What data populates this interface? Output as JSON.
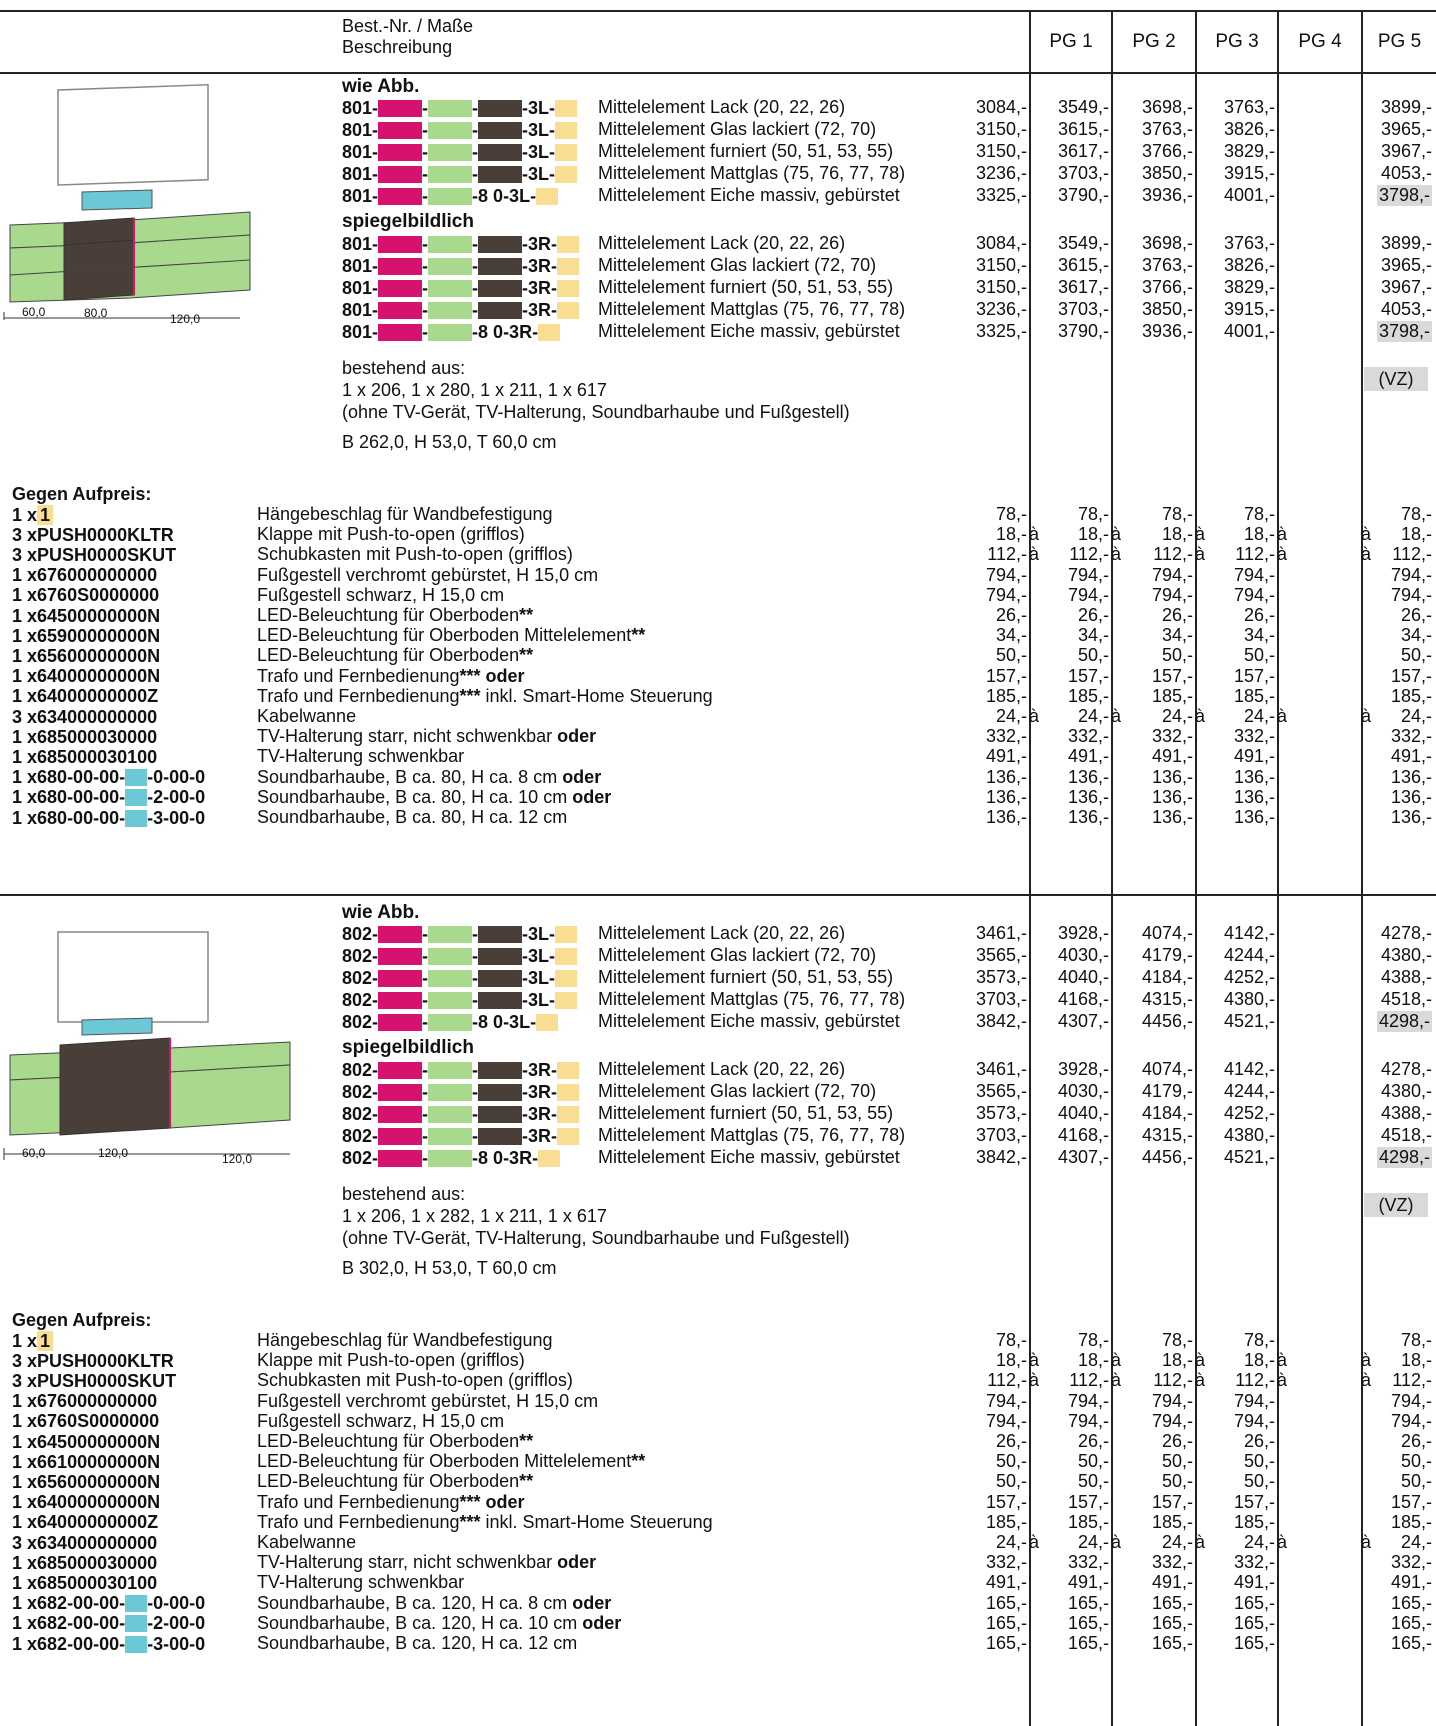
{
  "header": {
    "desc_line1": "Best.-Nr. / Maße",
    "desc_line2": "Beschreibung",
    "pg": [
      "PG 1",
      "PG 2",
      "PG 3",
      "PG 4",
      "PG 5"
    ]
  },
  "blocks": [
    {
      "wie_abb": "wie Abb.",
      "spiegel": "spiegelbildlich",
      "prefix": "801-",
      "rowsL": [
        {
          "mid": "",
          "suffix": "-3L-",
          "desc": "Mittelelement Lack (20, 22, 26)",
          "prices": [
            "3084,-",
            "3549,-",
            "3698,-",
            "3763,-",
            "3899,-"
          ]
        },
        {
          "mid": "",
          "suffix": "-3L-",
          "desc": "Mittelelement Glas lackiert (72, 70)",
          "prices": [
            "3150,-",
            "3615,-",
            "3763,-",
            "3826,-",
            "3965,-"
          ]
        },
        {
          "mid": "",
          "suffix": "-3L-",
          "desc": "Mittelelement furniert (50, 51, 53, 55)",
          "prices": [
            "3150,-",
            "3617,-",
            "3766,-",
            "3829,-",
            "3967,-"
          ]
        },
        {
          "mid": "",
          "suffix": "-3L-",
          "desc": "Mittelelement Mattglas (75, 76, 77, 78)",
          "prices": [
            "3236,-",
            "3703,-",
            "3850,-",
            "3915,-",
            "4053,-"
          ]
        },
        {
          "mid": "8 0",
          "suffix": "-3L-",
          "desc": "Mittelelement Eiche massiv, gebürstet",
          "prices": [
            "3325,-",
            "3790,-",
            "3936,-",
            "4001,-",
            "3798,-"
          ]
        }
      ],
      "rowsR": [
        {
          "mid": "",
          "suffix": "-3R-",
          "desc": "Mittelelement Lack (20, 22, 26)",
          "prices": [
            "3084,-",
            "3549,-",
            "3698,-",
            "3763,-",
            "3899,-"
          ]
        },
        {
          "mid": "",
          "suffix": "-3R-",
          "desc": "Mittelelement Glas lackiert (72, 70)",
          "prices": [
            "3150,-",
            "3615,-",
            "3763,-",
            "3826,-",
            "3965,-"
          ]
        },
        {
          "mid": "",
          "suffix": "-3R-",
          "desc": "Mittelelement furniert (50, 51, 53, 55)",
          "prices": [
            "3150,-",
            "3617,-",
            "3766,-",
            "3829,-",
            "3967,-"
          ]
        },
        {
          "mid": "",
          "suffix": "-3R-",
          "desc": "Mittelelement Mattglas (75, 76, 77, 78)",
          "prices": [
            "3236,-",
            "3703,-",
            "3850,-",
            "3915,-",
            "4053,-"
          ]
        },
        {
          "mid": "8 0",
          "suffix": "-3R-",
          "desc": "Mittelelement Eiche massiv, gebürstet",
          "prices": [
            "3325,-",
            "3790,-",
            "3936,-",
            "4001,-",
            "3798,-"
          ]
        }
      ],
      "consists": [
        "bestehend aus:",
        "1 x 206, 1 x 280, 1 x 211, 1 x 617",
        "(ohne TV-Gerät, TV-Halterung, Soundbarhaube und Fußgestell)"
      ],
      "dims": "B 262,0, H 53,0, T 60,0 cm",
      "vz": "(VZ)",
      "fig_dims": [
        "60,0",
        "80,0",
        "120,0"
      ],
      "extra_title": "Gegen Aufpreis:",
      "extras": [
        {
          "q": "1 x ",
          "code": "1",
          "codeSwatch": true,
          "desc": "Hängebeschlag für Wandbefestigung",
          "bold": "",
          "p": [
            "78,-",
            "78,-",
            "78,-",
            "78,-",
            "78,-"
          ],
          "a": false
        },
        {
          "q": "3 x ",
          "code": "PUSH0000KLTR",
          "desc": "Klappe mit Push-to-open (grifflos)",
          "bold": "",
          "p": [
            "18,-",
            "18,-",
            "18,-",
            "18,-",
            "18,-"
          ],
          "a": true
        },
        {
          "q": "3 x ",
          "code": "PUSH0000SKUT",
          "desc": "Schubkasten mit Push-to-open (grifflos)",
          "bold": "",
          "p": [
            "112,-",
            "112,-",
            "112,-",
            "112,-",
            "112,-"
          ],
          "a": true
        },
        {
          "q": "1 x ",
          "code": "676000000000",
          "desc": "Fußgestell verchromt gebürstet, H 15,0 cm",
          "bold": "",
          "p": [
            "794,-",
            "794,-",
            "794,-",
            "794,-",
            "794,-"
          ],
          "a": false
        },
        {
          "q": "1 x ",
          "code": "6760S0000000",
          "desc": "Fußgestell schwarz, H 15,0 cm",
          "bold": "",
          "p": [
            "794,-",
            "794,-",
            "794,-",
            "794,-",
            "794,-"
          ],
          "a": false
        },
        {
          "q": "1 x ",
          "code": "64500000000N",
          "desc": "LED-Beleuchtung für Oberboden",
          "bold": "**",
          "p": [
            "26,-",
            "26,-",
            "26,-",
            "26,-",
            "26,-"
          ],
          "a": false
        },
        {
          "q": "1 x ",
          "code": "65900000000N",
          "desc": "LED-Beleuchtung für Oberboden Mittelelement",
          "bold": "**",
          "p": [
            "34,-",
            "34,-",
            "34,-",
            "34,-",
            "34,-"
          ],
          "a": false
        },
        {
          "q": "1 x ",
          "code": "65600000000N",
          "desc": "LED-Beleuchtung für Oberboden",
          "bold": "**",
          "p": [
            "50,-",
            "50,-",
            "50,-",
            "50,-",
            "50,-"
          ],
          "a": false
        },
        {
          "q": "1 x ",
          "code": "64000000000N",
          "desc": "Trafo und Fernbedienung",
          "bold": "*** oder",
          "p": [
            "157,-",
            "157,-",
            "157,-",
            "157,-",
            "157,-"
          ],
          "a": false
        },
        {
          "q": "1 x ",
          "code": "64000000000Z",
          "desc": "Trafo und Fernbedienung",
          "bold": "***",
          "tail": " inkl. Smart-Home Steuerung",
          "p": [
            "185,-",
            "185,-",
            "185,-",
            "185,-",
            "185,-"
          ],
          "a": false
        },
        {
          "q": "3 x ",
          "code": "634000000000",
          "desc": "Kabelwanne",
          "bold": "",
          "p": [
            "24,-",
            "24,-",
            "24,-",
            "24,-",
            "24,-"
          ],
          "a": true
        },
        {
          "q": "1 x ",
          "code": "685000030000",
          "desc": "TV-Halterung starr, nicht schwenkbar ",
          "bold": "oder",
          "p": [
            "332,-",
            "332,-",
            "332,-",
            "332,-",
            "332,-"
          ],
          "a": false
        },
        {
          "q": "1 x ",
          "code": "685000030100",
          "desc": "TV-Halterung schwenkbar",
          "bold": "",
          "p": [
            "491,-",
            "491,-",
            "491,-",
            "491,-",
            "491,-"
          ],
          "a": false
        },
        {
          "q": "1 x ",
          "code": "680-00-00-",
          "codeTail": "-0-00-0",
          "desc": "Soundbarhaube, B ca. 80, H ca. 8 cm ",
          "bold": "oder",
          "p": [
            "136,-",
            "136,-",
            "136,-",
            "136,-",
            "136,-"
          ],
          "a": false
        },
        {
          "q": "1 x ",
          "code": "680-00-00-",
          "codeTail": "-2-00-0",
          "desc": "Soundbarhaube, B ca. 80, H ca. 10 cm ",
          "bold": "oder",
          "p": [
            "136,-",
            "136,-",
            "136,-",
            "136,-",
            "136,-"
          ],
          "a": false
        },
        {
          "q": "1 x ",
          "code": "680-00-00-",
          "codeTail": "-3-00-0",
          "desc": "Soundbarhaube, B ca. 80, H ca. 12 cm",
          "bold": "",
          "p": [
            "136,-",
            "136,-",
            "136,-",
            "136,-",
            "136,-"
          ],
          "a": false
        }
      ]
    },
    {
      "wie_abb": "wie Abb.",
      "spiegel": "spiegelbildlich",
      "prefix": "802-",
      "rowsL": [
        {
          "mid": "",
          "suffix": "-3L-",
          "desc": "Mittelelement Lack (20, 22, 26)",
          "prices": [
            "3461,-",
            "3928,-",
            "4074,-",
            "4142,-",
            "4278,-"
          ]
        },
        {
          "mid": "",
          "suffix": "-3L-",
          "desc": "Mittelelement Glas lackiert (72, 70)",
          "prices": [
            "3565,-",
            "4030,-",
            "4179,-",
            "4244,-",
            "4380,-"
          ]
        },
        {
          "mid": "",
          "suffix": "-3L-",
          "desc": "Mittelelement furniert (50, 51, 53, 55)",
          "prices": [
            "3573,-",
            "4040,-",
            "4184,-",
            "4252,-",
            "4388,-"
          ]
        },
        {
          "mid": "",
          "suffix": "-3L-",
          "desc": "Mittelelement Mattglas (75, 76, 77, 78)",
          "prices": [
            "3703,-",
            "4168,-",
            "4315,-",
            "4380,-",
            "4518,-"
          ]
        },
        {
          "mid": "8 0",
          "suffix": "-3L-",
          "desc": "Mittelelement Eiche massiv, gebürstet",
          "prices": [
            "3842,-",
            "4307,-",
            "4456,-",
            "4521,-",
            "4298,-"
          ]
        }
      ],
      "rowsR": [
        {
          "mid": "",
          "suffix": "-3R-",
          "desc": "Mittelelement Lack (20, 22, 26)",
          "prices": [
            "3461,-",
            "3928,-",
            "4074,-",
            "4142,-",
            "4278,-"
          ]
        },
        {
          "mid": "",
          "suffix": "-3R-",
          "desc": "Mittelelement Glas lackiert (72, 70)",
          "prices": [
            "3565,-",
            "4030,-",
            "4179,-",
            "4244,-",
            "4380,-"
          ]
        },
        {
          "mid": "",
          "suffix": "-3R-",
          "desc": "Mittelelement furniert (50, 51, 53, 55)",
          "prices": [
            "3573,-",
            "4040,-",
            "4184,-",
            "4252,-",
            "4388,-"
          ]
        },
        {
          "mid": "",
          "suffix": "-3R-",
          "desc": "Mittelelement Mattglas (75, 76, 77, 78)",
          "prices": [
            "3703,-",
            "4168,-",
            "4315,-",
            "4380,-",
            "4518,-"
          ]
        },
        {
          "mid": "8 0",
          "suffix": "-3R-",
          "desc": "Mittelelement Eiche massiv, gebürstet",
          "prices": [
            "3842,-",
            "4307,-",
            "4456,-",
            "4521,-",
            "4298,-"
          ]
        }
      ],
      "consists": [
        "bestehend aus:",
        "1 x 206, 1 x 282, 1 x 211, 1 x 617",
        "(ohne TV-Gerät, TV-Halterung, Soundbarhaube und Fußgestell)"
      ],
      "dims": "B 302,0, H 53,0, T 60,0 cm",
      "vz": "(VZ)",
      "fig_dims": [
        "60,0",
        "120,0",
        "120,0"
      ],
      "extra_title": "Gegen Aufpreis:",
      "extras": [
        {
          "q": "1 x ",
          "code": "1",
          "codeSwatch": true,
          "desc": "Hängebeschlag für Wandbefestigung",
          "bold": "",
          "p": [
            "78,-",
            "78,-",
            "78,-",
            "78,-",
            "78,-"
          ],
          "a": false
        },
        {
          "q": "3 x ",
          "code": "PUSH0000KLTR",
          "desc": "Klappe mit Push-to-open (grifflos)",
          "bold": "",
          "p": [
            "18,-",
            "18,-",
            "18,-",
            "18,-",
            "18,-"
          ],
          "a": true
        },
        {
          "q": "3 x ",
          "code": "PUSH0000SKUT",
          "desc": "Schubkasten mit Push-to-open (grifflos)",
          "bold": "",
          "p": [
            "112,-",
            "112,-",
            "112,-",
            "112,-",
            "112,-"
          ],
          "a": true
        },
        {
          "q": "1 x ",
          "code": "676000000000",
          "desc": "Fußgestell verchromt gebürstet, H 15,0 cm",
          "bold": "",
          "p": [
            "794,-",
            "794,-",
            "794,-",
            "794,-",
            "794,-"
          ],
          "a": false
        },
        {
          "q": "1 x ",
          "code": "6760S0000000",
          "desc": "Fußgestell schwarz, H 15,0 cm",
          "bold": "",
          "p": [
            "794,-",
            "794,-",
            "794,-",
            "794,-",
            "794,-"
          ],
          "a": false
        },
        {
          "q": "1 x ",
          "code": "64500000000N",
          "desc": "LED-Beleuchtung für Oberboden",
          "bold": "**",
          "p": [
            "26,-",
            "26,-",
            "26,-",
            "26,-",
            "26,-"
          ],
          "a": false
        },
        {
          "q": "1 x ",
          "code": "66100000000N",
          "desc": "LED-Beleuchtung für Oberboden Mittelelement",
          "bold": "**",
          "p": [
            "50,-",
            "50,-",
            "50,-",
            "50,-",
            "50,-"
          ],
          "a": false
        },
        {
          "q": "1 x ",
          "code": "65600000000N",
          "desc": "LED-Beleuchtung für Oberboden",
          "bold": "**",
          "p": [
            "50,-",
            "50,-",
            "50,-",
            "50,-",
            "50,-"
          ],
          "a": false
        },
        {
          "q": "1 x ",
          "code": "64000000000N",
          "desc": "Trafo und Fernbedienung",
          "bold": "*** oder",
          "p": [
            "157,-",
            "157,-",
            "157,-",
            "157,-",
            "157,-"
          ],
          "a": false
        },
        {
          "q": "1 x ",
          "code": "64000000000Z",
          "desc": "Trafo und Fernbedienung",
          "bold": "***",
          "tail": " inkl. Smart-Home Steuerung",
          "p": [
            "185,-",
            "185,-",
            "185,-",
            "185,-",
            "185,-"
          ],
          "a": false
        },
        {
          "q": "3 x ",
          "code": "634000000000",
          "desc": "Kabelwanne",
          "bold": "",
          "p": [
            "24,-",
            "24,-",
            "24,-",
            "24,-",
            "24,-"
          ],
          "a": true
        },
        {
          "q": "1 x ",
          "code": "685000030000",
          "desc": "TV-Halterung starr, nicht schwenkbar ",
          "bold": "oder",
          "p": [
            "332,-",
            "332,-",
            "332,-",
            "332,-",
            "332,-"
          ],
          "a": false
        },
        {
          "q": "1 x ",
          "code": "685000030100",
          "desc": "TV-Halterung schwenkbar",
          "bold": "",
          "p": [
            "491,-",
            "491,-",
            "491,-",
            "491,-",
            "491,-"
          ],
          "a": false
        },
        {
          "q": "1 x ",
          "code": "682-00-00-",
          "codeTail": "-0-00-0",
          "desc": "Soundbarhaube, B ca. 120, H ca. 8 cm ",
          "bold": "oder",
          "p": [
            "165,-",
            "165,-",
            "165,-",
            "165,-",
            "165,-"
          ],
          "a": false
        },
        {
          "q": "1 x ",
          "code": "682-00-00-",
          "codeTail": "-2-00-0",
          "desc": "Soundbarhaube, B ca. 120, H ca. 10 cm ",
          "bold": "oder",
          "p": [
            "165,-",
            "165,-",
            "165,-",
            "165,-",
            "165,-"
          ],
          "a": false
        },
        {
          "q": "1 x ",
          "code": "682-00-00-",
          "codeTail": "-3-00-0",
          "desc": "Soundbarhaube, B ca. 120, H ca. 12 cm",
          "bold": "",
          "p": [
            "165,-",
            "165,-",
            "165,-",
            "165,-",
            "165,-"
          ],
          "a": false
        }
      ]
    }
  ],
  "colors": {
    "magenta": "#d6126e",
    "green": "#a8d98c",
    "dark": "#4a3f38",
    "yellow": "#f8dd93",
    "cyan": "#6cc7d6",
    "highlight": "#d9d9d9"
  }
}
